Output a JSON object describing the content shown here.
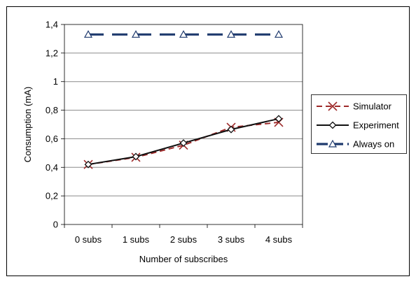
{
  "chart_data": {
    "type": "line",
    "xlabel": "Number of subscribes",
    "ylabel": "Consumption (mA)",
    "categories": [
      "0 subs",
      "1 subs",
      "2 subs",
      "3 subs",
      "4 subs"
    ],
    "ylim": [
      0,
      1.4
    ],
    "yticks": [
      {
        "value": 0,
        "label": "0"
      },
      {
        "value": 0.2,
        "label": "0,2"
      },
      {
        "value": 0.4,
        "label": "0,4"
      },
      {
        "value": 0.6,
        "label": "0,6"
      },
      {
        "value": 0.8,
        "label": "0,8"
      },
      {
        "value": 1.0,
        "label": "1"
      },
      {
        "value": 1.2,
        "label": "1,2"
      },
      {
        "value": 1.4,
        "label": "1,4"
      }
    ],
    "grid": true,
    "legend_position": "right",
    "series": [
      {
        "name": "Simulator",
        "values": [
          0.42,
          0.47,
          0.555,
          0.68,
          0.715
        ],
        "color": "#9e2a2a",
        "dash": "dashed",
        "marker": "x"
      },
      {
        "name": "Experiment",
        "values": [
          0.42,
          0.475,
          0.57,
          0.665,
          0.74
        ],
        "color": "#111111",
        "dash": "solid",
        "marker": "diamond"
      },
      {
        "name": "Always on",
        "values": [
          1.33,
          1.33,
          1.33,
          1.33,
          1.33
        ],
        "color": "#1f3a6e",
        "dash": "dashed",
        "marker": "triangle"
      }
    ]
  }
}
